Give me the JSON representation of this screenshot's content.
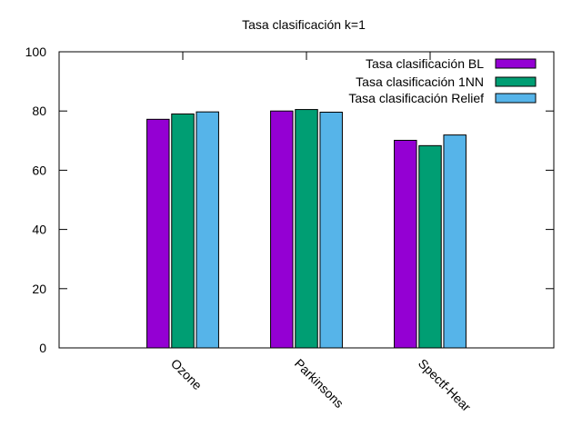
{
  "chart_data": {
    "type": "bar",
    "title": "Tasa clasificación k=1",
    "xlabel": "",
    "ylabel": "",
    "ylim": [
      0,
      100
    ],
    "yticks": [
      0,
      20,
      40,
      60,
      80,
      100
    ],
    "grid": false,
    "legend_position": "top-right",
    "categories": [
      "Ozone",
      "Parkinsons",
      "Spectf-Hear"
    ],
    "series": [
      {
        "name": "Tasa clasificación BL",
        "color": "#9400d3",
        "values": [
          77.2,
          80.0,
          70.1
        ]
      },
      {
        "name": "Tasa clasificación 1NN",
        "color": "#009e73",
        "values": [
          79.0,
          80.5,
          68.3
        ]
      },
      {
        "name": "Tasa clasificación Relief",
        "color": "#56b4e9",
        "values": [
          79.7,
          79.6,
          71.9
        ]
      }
    ]
  }
}
